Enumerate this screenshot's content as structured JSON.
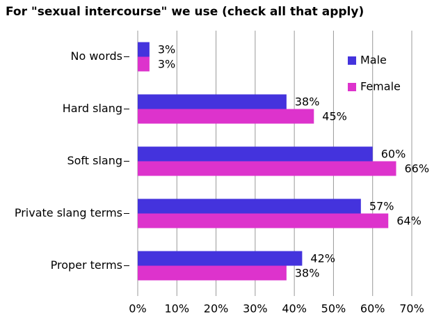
{
  "chart_data": {
    "type": "bar",
    "orientation": "horizontal",
    "title": "For \"sexual intercourse\" we use (check all that apply)",
    "categories": [
      "No words",
      "Hard slang",
      "Soft slang",
      "Private slang terms",
      "Proper terms"
    ],
    "series": [
      {
        "name": "Male",
        "color": "#4433dd",
        "values": [
          3,
          38,
          60,
          57,
          42
        ],
        "value_labels": [
          "3%",
          "38%",
          "60%",
          "57%",
          "42%"
        ]
      },
      {
        "name": "Female",
        "color": "#dd33cc",
        "values": [
          3,
          45,
          66,
          64,
          38
        ],
        "value_labels": [
          "3%",
          "45%",
          "66%",
          "64%",
          "38%"
        ]
      }
    ],
    "xlim": [
      0,
      70
    ],
    "xticks": [
      {
        "value": 0,
        "label": "0%"
      },
      {
        "value": 10,
        "label": "10%"
      },
      {
        "value": 20,
        "label": "20%"
      },
      {
        "value": 30,
        "label": "30%"
      },
      {
        "value": 40,
        "label": "40%"
      },
      {
        "value": 50,
        "label": "50%"
      },
      {
        "value": 60,
        "label": "60%"
      },
      {
        "value": 70,
        "label": "70%"
      }
    ],
    "grid": true,
    "legend": "upper right"
  }
}
